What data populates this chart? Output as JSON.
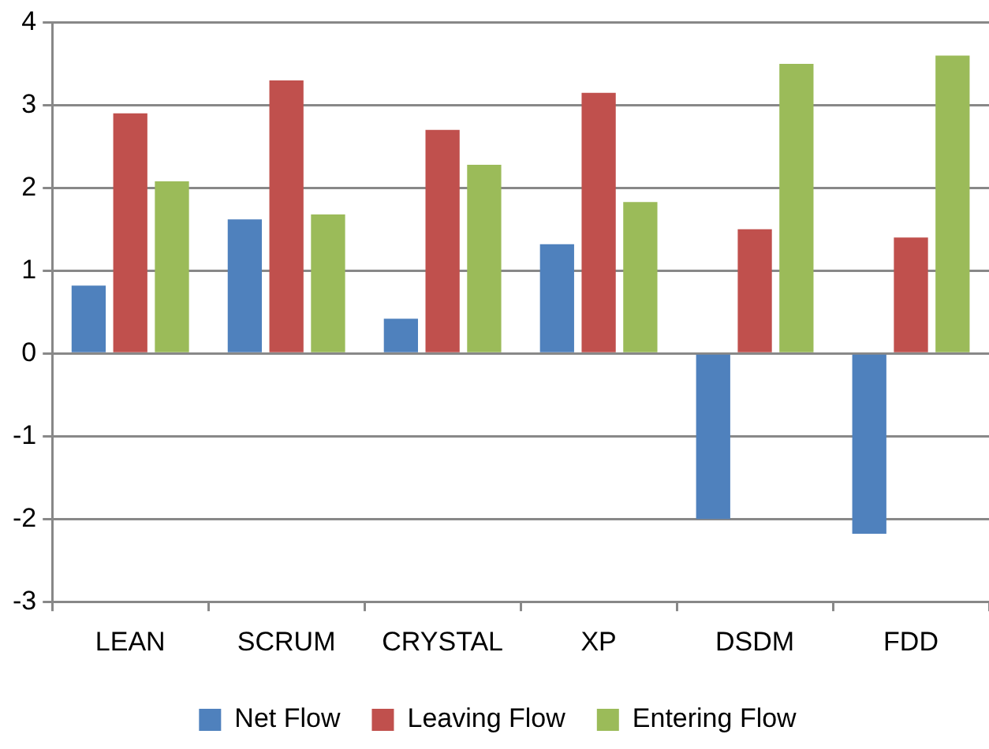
{
  "chart_data": {
    "type": "bar",
    "categories": [
      "LEAN",
      "SCRUM",
      "CRYSTAL",
      "XP",
      "DSDM",
      "FDD"
    ],
    "series": [
      {
        "name": "Net Flow",
        "color": "#4f81bd",
        "values": [
          0.82,
          1.62,
          0.42,
          1.32,
          -2.0,
          -2.18
        ]
      },
      {
        "name": "Leaving Flow",
        "color": "#c0504d",
        "values": [
          2.9,
          3.3,
          2.7,
          3.15,
          1.5,
          1.4
        ]
      },
      {
        "name": "Entering Flow",
        "color": "#9bbb59",
        "values": [
          2.08,
          1.68,
          2.28,
          1.83,
          3.5,
          3.6
        ]
      }
    ],
    "ylim": [
      -3,
      4
    ],
    "yticks": [
      -3,
      -2,
      -1,
      0,
      1,
      2,
      3,
      4
    ],
    "grid": "y",
    "legend": "bottom"
  }
}
